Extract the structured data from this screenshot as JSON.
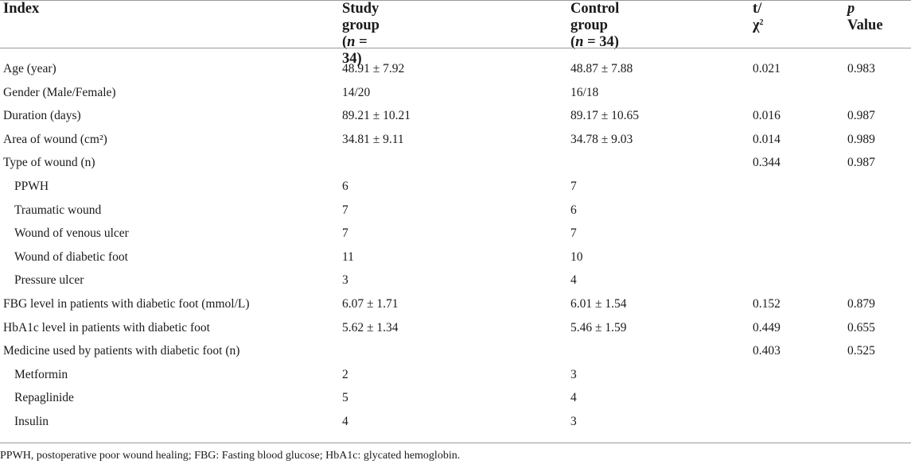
{
  "header": {
    "index": "Index",
    "study_label": "Study group",
    "study_n": "(n = 34)",
    "control_label_line1": "Control",
    "control_label_line2": "group",
    "control_n": "(n = 34)",
    "t_chi": "t/χ",
    "t_chi_sup": "2",
    "p_italic": "p",
    "p_rest": "Value"
  },
  "rows": [
    {
      "label": "Age (year)",
      "sub": false,
      "study": "48.91 ± 7.92",
      "control": "48.87 ± 7.88",
      "t": "0.021",
      "p": "0.983"
    },
    {
      "label": "Gender (Male/Female)",
      "sub": false,
      "study": "14/20",
      "control": "16/18",
      "t": "",
      "p": ""
    },
    {
      "label": "Duration (days)",
      "sub": false,
      "study": "89.21 ± 10.21",
      "control": "89.17 ± 10.65",
      "t": "0.016",
      "p": "0.987"
    },
    {
      "label": "Area of wound (cm²)",
      "sub": false,
      "study": "34.81 ± 9.11",
      "control": "34.78 ± 9.03",
      "t": "0.014",
      "p": "0.989"
    },
    {
      "label": "Type of wound (n)",
      "sub": false,
      "study": "",
      "control": "",
      "t": "0.344",
      "p": "0.987"
    },
    {
      "label": "PPWH",
      "sub": true,
      "study": "6",
      "control": "7",
      "t": "",
      "p": ""
    },
    {
      "label": "Traumatic wound",
      "sub": true,
      "study": "7",
      "control": "6",
      "t": "",
      "p": ""
    },
    {
      "label": "Wound of venous ulcer",
      "sub": true,
      "study": "7",
      "control": "7",
      "t": "",
      "p": ""
    },
    {
      "label": "Wound of diabetic foot",
      "sub": true,
      "study": "11",
      "control": "10",
      "t": "",
      "p": ""
    },
    {
      "label": "Pressure ulcer",
      "sub": true,
      "study": "3",
      "control": "4",
      "t": "",
      "p": ""
    },
    {
      "label": "FBG level in patients with diabetic foot (mmol/L)",
      "sub": false,
      "study": "6.07 ± 1.71",
      "control": "6.01 ± 1.54",
      "t": "0.152",
      "p": "0.879"
    },
    {
      "label": "HbA1c level in patients with diabetic foot",
      "sub": false,
      "study": "5.62 ± 1.34",
      "control": "5.46 ± 1.59",
      "t": "0.449",
      "p": "0.655"
    },
    {
      "label": "Medicine used by patients with diabetic foot (n)",
      "sub": false,
      "study": "",
      "control": "",
      "t": "0.403",
      "p": "0.525"
    },
    {
      "label": "Metformin",
      "sub": true,
      "study": "2",
      "control": "3",
      "t": "",
      "p": ""
    },
    {
      "label": "Repaglinide",
      "sub": true,
      "study": "5",
      "control": "4",
      "t": "",
      "p": ""
    },
    {
      "label": "Insulin",
      "sub": true,
      "study": "4",
      "control": "3",
      "t": "",
      "p": ""
    }
  ],
  "footnote": "PPWH, postoperative poor wound healing; FBG: Fasting blood glucose; HbA1c: glycated hemoglobin."
}
